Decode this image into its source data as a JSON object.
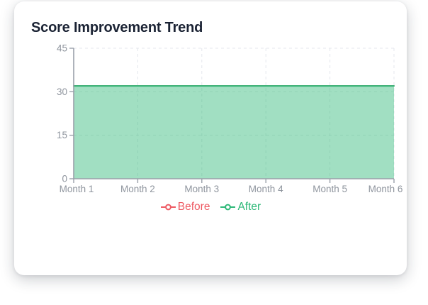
{
  "page": {
    "background": "#ffffff"
  },
  "card": {
    "title": "Score Improvement Trend",
    "background": "#ffffff",
    "title_color": "#1b2334"
  },
  "chart_data": {
    "type": "area",
    "title": "Score Improvement Trend",
    "categories": [
      "Month 1",
      "Month 2",
      "Month 3",
      "Month 4",
      "Month 5",
      "Month 6"
    ],
    "series": [
      {
        "name": "Before",
        "color": "#ee5a63",
        "values": [
          32,
          32,
          32,
          32,
          32,
          32
        ],
        "fill": false
      },
      {
        "name": "After",
        "color": "#2eb878",
        "values": [
          32,
          32,
          32,
          32,
          32,
          32
        ],
        "fill": true,
        "fill_opacity": 0.45
      }
    ],
    "xlabel": "",
    "ylabel": "",
    "ylim": [
      0,
      45
    ],
    "yticks": [
      0,
      15,
      30,
      45
    ],
    "grid": "dashed",
    "legend_position": "bottom",
    "axis_color": "#9aa0aa",
    "grid_color": "#e4e7ec",
    "tick_label_color": "#8f959e"
  },
  "legend": {
    "items": [
      {
        "label": "Before",
        "color": "#ee5a63"
      },
      {
        "label": "After",
        "color": "#2eb878"
      }
    ]
  }
}
